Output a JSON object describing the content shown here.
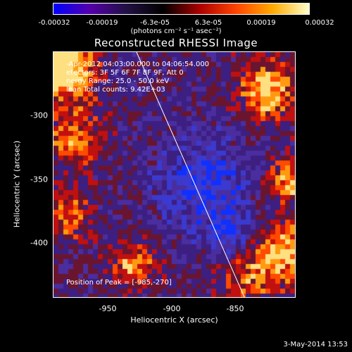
{
  "colorbar": {
    "ticks": [
      "-0.00032",
      "-0.00019",
      "-6.3e-05",
      "6.3e-05",
      "0.00019",
      "0.00032"
    ],
    "units": "(photons cm⁻² s⁻¹ asec⁻²)",
    "colors": [
      "#0000ff",
      "#5500aa",
      "#221144",
      "#000000",
      "#aa0000",
      "#ff4400",
      "#ffaa00",
      "#ffffcc"
    ]
  },
  "plot": {
    "title": "Reconstructed RHESSI Image",
    "time_line": "-Apr-2012 04:03:00.000 to 04:06:54.000",
    "detectors_line": "etectors: 3F 5F 6F 7F 8F 9F, Att 0",
    "energy_line": "nergy Range: 25.0 - 50.0 keV",
    "clean_line": "lean     Total counts: 9.42E+03",
    "peak_label": "Position of Peak = [-985,-270]",
    "ylabel": "Heliocentric Y (arcsec)",
    "xlabel": "Heliocentric X (arcsec)",
    "yticks": [
      "-300",
      "-350",
      "-400"
    ],
    "xticks": [
      "-950",
      "-900",
      "-850"
    ]
  },
  "footer": {
    "date": "3-May-2014 13:53"
  }
}
